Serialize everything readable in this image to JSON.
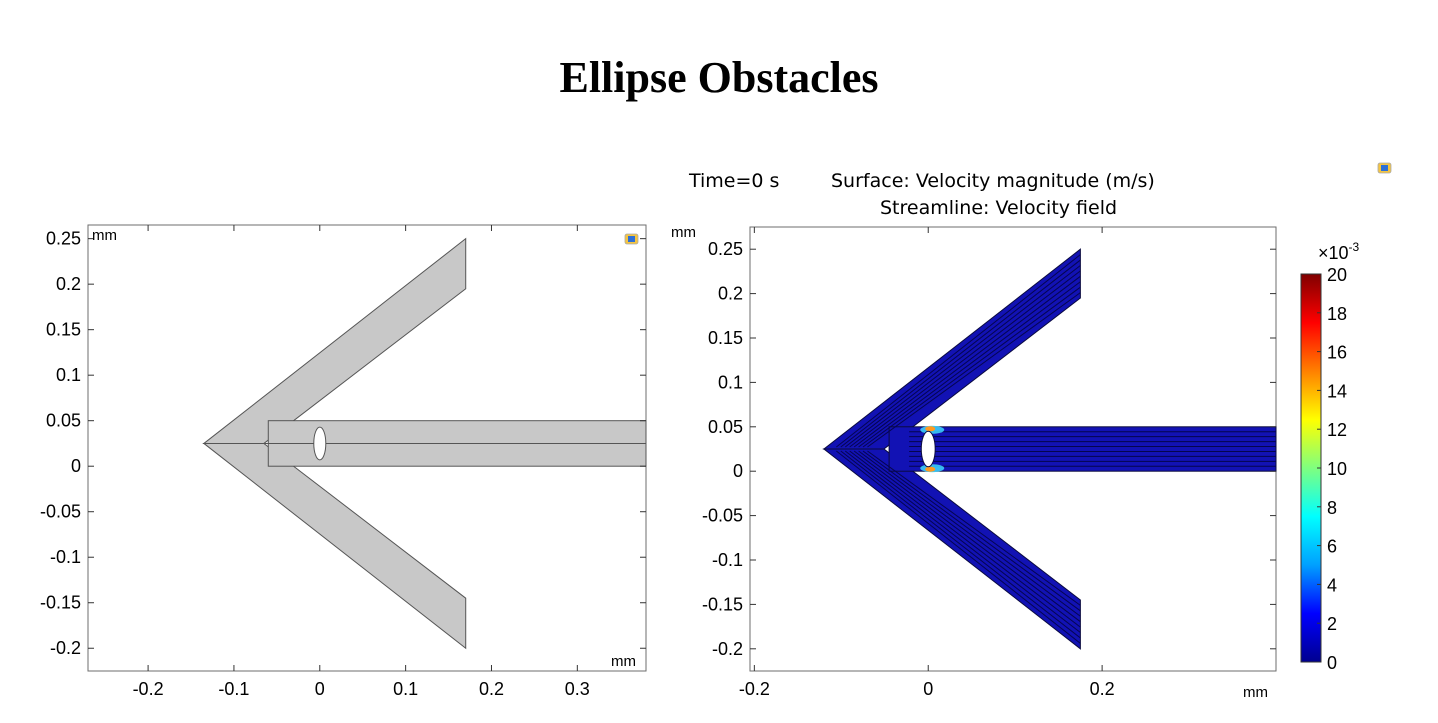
{
  "page": {
    "title": "Ellipse Obstacles"
  },
  "chart_data": [
    {
      "type": "geometry",
      "xlim": [
        -0.27,
        0.38
      ],
      "ylim": [
        -0.225,
        0.265
      ],
      "x_ticks": [
        -0.2,
        -0.1,
        0,
        0.1,
        0.2,
        0.3
      ],
      "x_tick_labels": [
        "-0.2",
        "-0.1",
        "0",
        "0.1",
        "0.2",
        "0.3"
      ],
      "y_ticks": [
        0.25,
        0.2,
        0.15,
        0.1,
        0.05,
        0,
        -0.05,
        -0.1,
        -0.15,
        -0.2
      ],
      "y_tick_labels": [
        "0.25",
        "0.2",
        "0.15",
        "0.1",
        "0.05",
        "0",
        "-0.05",
        "-0.1",
        "-0.15",
        "-0.2"
      ],
      "unit_x": "mm",
      "unit_y": "mm",
      "fill_color": "#c8c8c8",
      "geometry": {
        "arrow_tip": [
          -0.135,
          0.025
        ],
        "arm_end_x": 0.17,
        "upper_arm_end": [
          0.25,
          0.195
        ],
        "lower_arm_end": [
          -0.145,
          -0.2
        ],
        "channel": {
          "x0": -0.06,
          "x1": 0.38,
          "y0": 0,
          "y1": 0.05
        },
        "ellipse": {
          "cx": 0,
          "cy": 0.025,
          "rx": 0.007,
          "ry": 0.018
        }
      }
    },
    {
      "type": "heatmap",
      "header": {
        "time": "Time=0 s",
        "surface": "Surface: Velocity magnitude (m/s)",
        "streamline": "Streamline: Velocity field"
      },
      "xlim": [
        -0.205,
        0.4
      ],
      "ylim": [
        -0.225,
        0.275
      ],
      "x_ticks": [
        -0.2,
        0,
        0.2
      ],
      "x_tick_labels": [
        "-0.2",
        "0",
        "0.2"
      ],
      "y_ticks": [
        0.25,
        0.2,
        0.15,
        0.1,
        0.05,
        0,
        -0.05,
        -0.1,
        -0.15,
        -0.2
      ],
      "y_tick_labels": [
        "0.25",
        "0.2",
        "0.15",
        "0.1",
        "0.05",
        "0",
        "-0.05",
        "-0.1",
        "-0.15",
        "-0.2"
      ],
      "unit_x": "mm",
      "unit_y": "mm",
      "fill_color": "#1212b4",
      "geometry": {
        "arrow_tip": [
          -0.12,
          0.025
        ],
        "arm_end_x": 0.175,
        "upper_arm_end": [
          0.25,
          0.195
        ],
        "lower_arm_end": [
          -0.145,
          -0.2
        ],
        "channel": {
          "x0": -0.045,
          "x1": 0.4,
          "y0": 0,
          "y1": 0.05
        },
        "ellipse": {
          "cx": 0,
          "cy": 0.025,
          "rx": 0.008,
          "ry": 0.02
        }
      },
      "colorbar": {
        "multiplier_base": "×10",
        "multiplier_exp": "-3",
        "min": 0,
        "max": 20,
        "ticks": [
          "20",
          "18",
          "16",
          "14",
          "12",
          "10",
          "8",
          "6",
          "4",
          "2",
          "0"
        ],
        "colors": [
          "#00008f",
          "#0000ff",
          "#00a0ff",
          "#00ffff",
          "#7fff7f",
          "#ffff00",
          "#ff8000",
          "#ff0000",
          "#800000"
        ]
      }
    }
  ]
}
